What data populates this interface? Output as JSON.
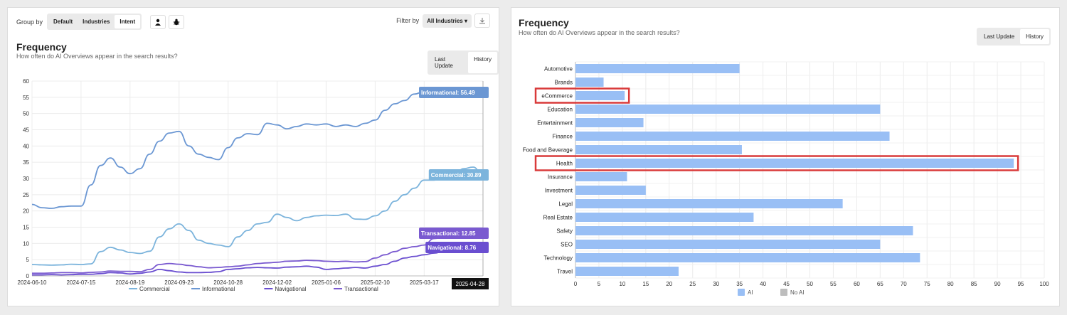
{
  "left": {
    "toolbar": {
      "group_by_label": "Group by",
      "group_options": [
        "Default",
        "Industries",
        "Intent"
      ],
      "active_group": "Intent",
      "icons": [
        "user-icon",
        "bug-icon"
      ],
      "filter_label": "Filter by",
      "filter_value": "All Industries ▾",
      "download_icon": "download-icon"
    },
    "title": "Frequency",
    "subtitle": "How often do AI Overviews appear in the search results?",
    "tabs": [
      "Last Update",
      "History"
    ],
    "active_tab": "History"
  },
  "right": {
    "title": "Frequency",
    "subtitle": "How often do AI Overviews appear in the search results?",
    "tabs": [
      "Last Update",
      "History"
    ],
    "active_tab": "History"
  },
  "chart_data": [
    {
      "type": "line",
      "ylim": [
        0,
        60
      ],
      "yticks": [
        0,
        5,
        10,
        15,
        20,
        25,
        30,
        35,
        40,
        45,
        50,
        55,
        60
      ],
      "xticks": [
        "2024-06-10",
        "2024-07-15",
        "2024-08-19",
        "2024-09-23",
        "2024-10-28",
        "2024-12-02",
        "2025-01-06",
        "2025-02-10",
        "2025-03-17"
      ],
      "x_index_range": [
        0,
        46
      ],
      "hover_date": "2025-04-28",
      "series": [
        {
          "name": "Commercial",
          "color": "#7cb4dc",
          "tooltip": "Commercial: 30.89",
          "values": [
            3.5,
            3.4,
            3.3,
            3.4,
            3.6,
            3.5,
            3.7,
            7.5,
            8.8,
            8.0,
            7.2,
            6.9,
            7.6,
            12.0,
            14.5,
            16.0,
            14.0,
            11.0,
            10.0,
            9.5,
            9.0,
            12.0,
            14.0,
            16.0,
            16.5,
            19.0,
            18.0,
            17.0,
            18.0,
            18.5,
            18.7,
            18.6,
            19.0,
            17.5,
            17.4,
            18.5,
            20.0,
            23.0,
            25.0,
            27.0,
            29.5,
            29.5,
            30.0,
            30.2,
            33.0,
            33.5,
            30.89
          ]
        },
        {
          "name": "Informational",
          "color": "#6b97d3",
          "tooltip": "Informational: 56.49",
          "values": [
            22.0,
            21.0,
            20.8,
            21.3,
            21.5,
            21.5,
            28.0,
            34.0,
            36.3,
            33.5,
            31.5,
            33.0,
            37.5,
            41.5,
            44.0,
            44.5,
            40.0,
            37.5,
            36.5,
            35.8,
            39.5,
            42.5,
            43.8,
            43.5,
            47.0,
            46.5,
            45.3,
            46.0,
            46.8,
            46.5,
            46.8,
            46.0,
            46.5,
            46.0,
            47.0,
            48.0,
            51.0,
            53.0,
            54.0,
            56.0,
            56.8,
            56.5,
            56.5,
            56.49,
            56.49,
            56.49,
            56.49
          ]
        },
        {
          "name": "Navigational",
          "color": "#6a4ed0",
          "tooltip": "Navigational: 8.76",
          "values": [
            0.3,
            0.3,
            0.4,
            0.3,
            0.4,
            0.5,
            0.5,
            0.7,
            1.0,
            0.9,
            0.6,
            0.8,
            1.2,
            2.0,
            1.6,
            1.2,
            1.0,
            1.0,
            1.1,
            1.3,
            2.0,
            2.2,
            2.5,
            2.6,
            2.5,
            2.4,
            2.7,
            2.8,
            3.0,
            2.7,
            2.0,
            2.2,
            2.4,
            2.6,
            2.4,
            3.0,
            3.5,
            4.5,
            5.5,
            6.0,
            6.5,
            7.0,
            7.5,
            8.0,
            8.5,
            8.76,
            8.76
          ]
        },
        {
          "name": "Transactional",
          "color": "#7a5ad0",
          "tooltip": "Transactional: 12.85",
          "values": [
            0.8,
            0.8,
            0.9,
            1.0,
            1.0,
            0.9,
            1.1,
            1.2,
            1.5,
            1.4,
            1.4,
            1.3,
            2.0,
            3.5,
            3.8,
            3.6,
            3.2,
            2.8,
            2.5,
            2.6,
            2.8,
            3.0,
            3.4,
            3.8,
            4.0,
            4.2,
            4.5,
            4.6,
            4.8,
            4.7,
            4.5,
            4.4,
            4.5,
            4.3,
            4.4,
            5.5,
            6.5,
            7.5,
            8.5,
            9.0,
            9.5,
            11.5,
            12.0,
            12.3,
            12.6,
            12.85,
            12.85
          ]
        }
      ]
    },
    {
      "type": "bar",
      "orientation": "horizontal",
      "xlim": [
        0,
        100
      ],
      "xticks": [
        0,
        5,
        10,
        15,
        20,
        25,
        30,
        35,
        40,
        45,
        50,
        55,
        60,
        65,
        70,
        75,
        80,
        85,
        90,
        95,
        100
      ],
      "categories": [
        "Automotive",
        "Brands",
        "eCommerce",
        "Education",
        "Entertainment",
        "Finance",
        "Food and Beverage",
        "Health",
        "Insurance",
        "Investment",
        "Legal",
        "Real Estate",
        "Safety",
        "SEO",
        "Technology",
        "Travel"
      ],
      "series": [
        {
          "name": "AI",
          "color": "#99bff5",
          "values": [
            35,
            6,
            10.5,
            65,
            14.5,
            67,
            35.5,
            93.5,
            11,
            15,
            57,
            38,
            72,
            65,
            73.5,
            22
          ]
        }
      ],
      "legend": [
        {
          "name": "AI",
          "color": "#99bff5"
        },
        {
          "name": "No AI",
          "color": "#bdbdbd"
        }
      ],
      "highlighted": [
        "eCommerce",
        "Health"
      ],
      "highlight_color": "#d93a3a"
    }
  ]
}
